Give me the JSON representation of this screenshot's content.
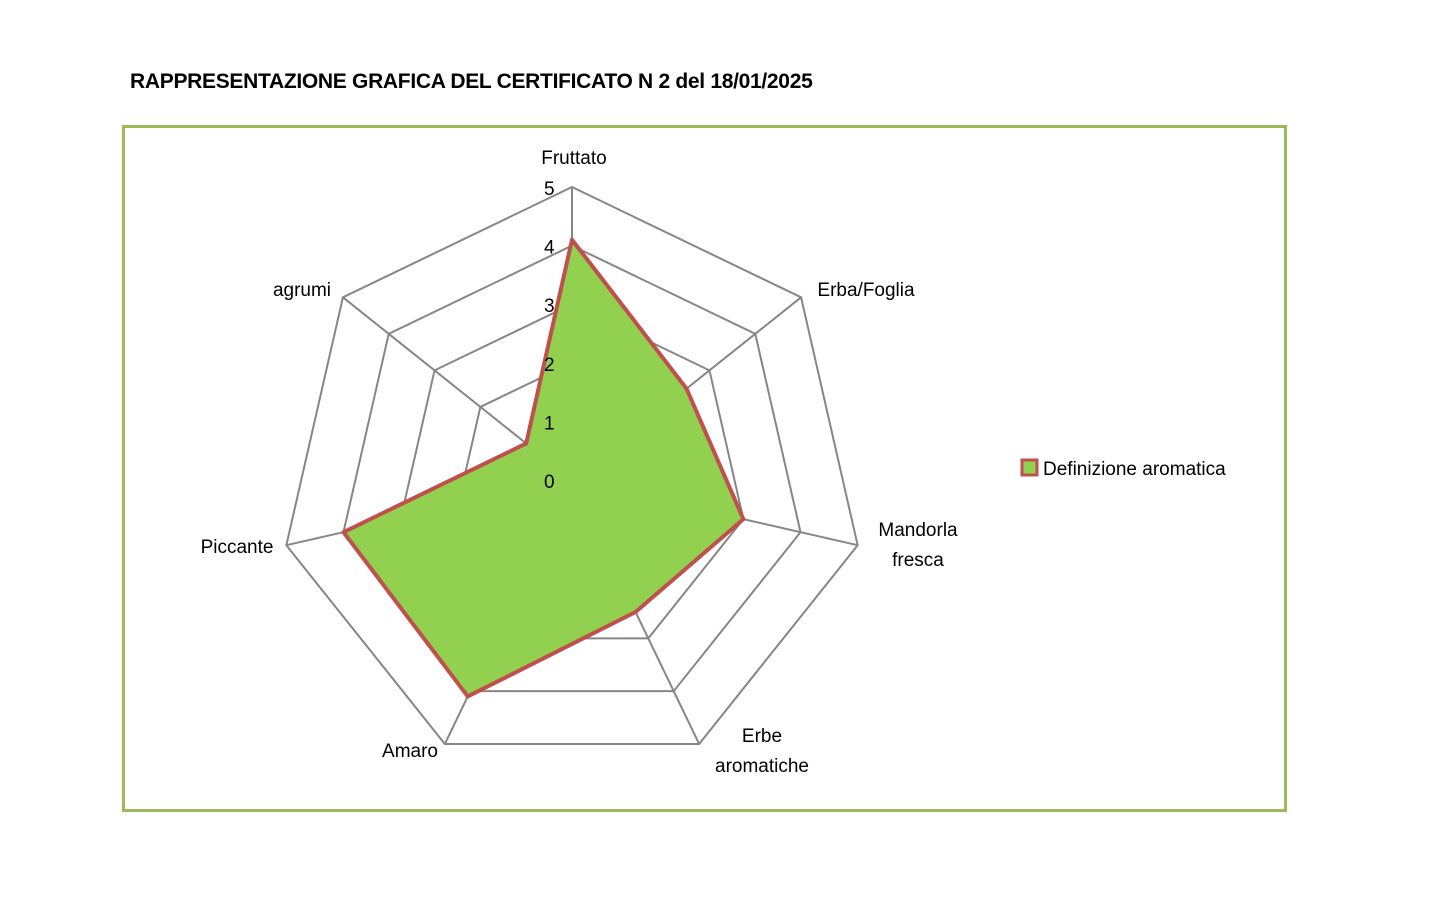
{
  "title": "RAPPRESENTAZIONE GRAFICA DEL CERTIFICATO N 2 del 18/01/2025",
  "chart_data": {
    "type": "radar",
    "title": "RAPPRESENTAZIONE GRAFICA DEL CERTIFICATO N 2 del 18/01/2025",
    "categories": [
      "Fruttato",
      "Erba/Foglia",
      "Mandorla fresca",
      "Erbe aromatiche",
      "Amaro",
      "Piccante",
      "agrumi"
    ],
    "category_lines": [
      [
        "Fruttato"
      ],
      [
        "Erba/Foglia"
      ],
      [
        "Mandorla",
        "fresca"
      ],
      [
        "Erbe",
        "aromatiche"
      ],
      [
        "Amaro"
      ],
      [
        "Piccante"
      ],
      [
        "agrumi"
      ]
    ],
    "series": [
      {
        "name": "Definizione aromatica",
        "values": [
          4.1,
          2.5,
          3,
          2.5,
          4.1,
          4,
          1
        ],
        "fill": "#92d050",
        "stroke": "#c0504d"
      }
    ],
    "rlim": [
      0,
      5
    ],
    "ticks": [
      "0",
      "1",
      "2",
      "3",
      "4",
      "5"
    ],
    "grid": true,
    "legend": "right",
    "frame_color": "#9bbb59"
  }
}
